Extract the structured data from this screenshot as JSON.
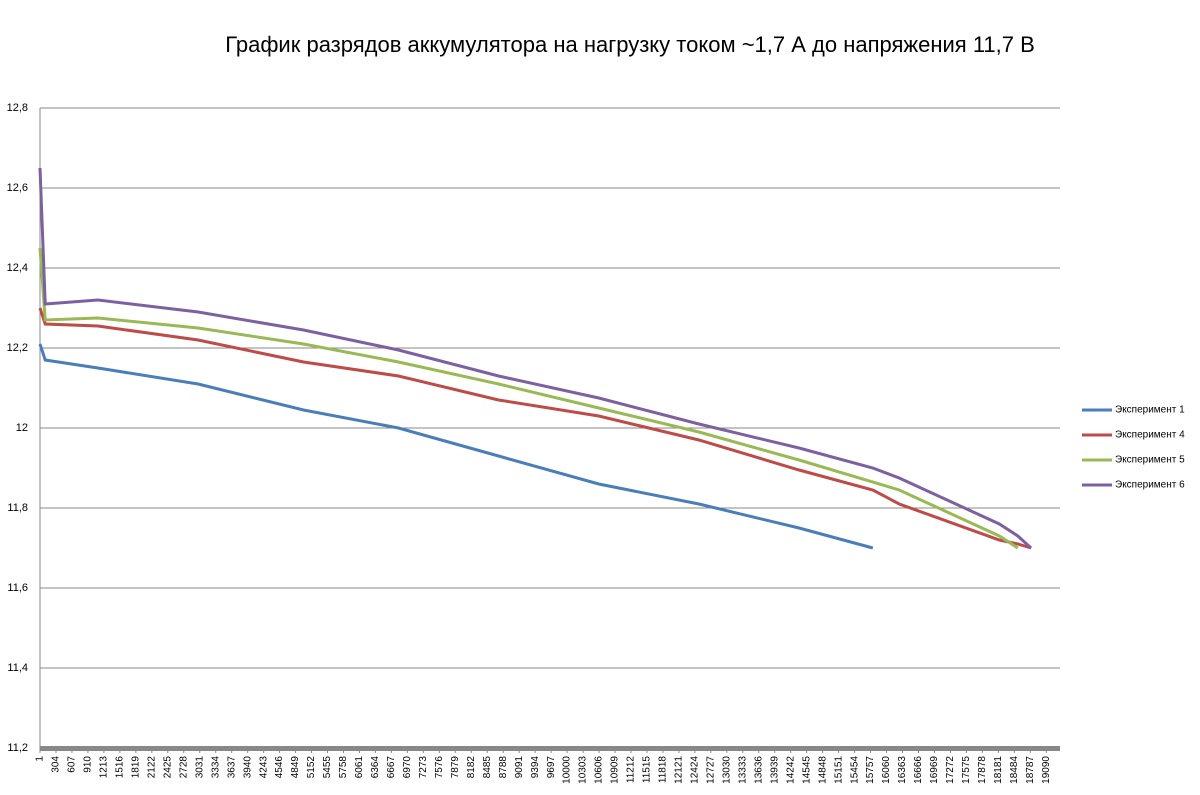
{
  "chart_data": {
    "type": "line",
    "title": "График разрядов аккумулятора на нагрузку током ~1,7 А до напряжения 11,7 В",
    "x": [
      1,
      100,
      1100,
      3000,
      5000,
      6800,
      8700,
      10600,
      12500,
      14400,
      15800,
      16300,
      18200,
      18550,
      18800
    ],
    "series": [
      {
        "name": "Эксперимент 1",
        "color": "#4a7ebb",
        "values": [
          12.21,
          12.17,
          12.15,
          12.11,
          12.045,
          12.0,
          11.93,
          11.86,
          11.81,
          11.75,
          11.7,
          null,
          null,
          null,
          null
        ]
      },
      {
        "name": "Эксперимент 4",
        "color": "#be4b48",
        "values": [
          12.3,
          12.26,
          12.255,
          12.22,
          12.165,
          12.13,
          12.07,
          12.03,
          11.97,
          11.895,
          11.845,
          11.81,
          11.72,
          11.71,
          11.7
        ]
      },
      {
        "name": "Эксперимент 5",
        "color": "#98b954",
        "values": [
          12.45,
          12.27,
          12.275,
          12.25,
          12.21,
          12.165,
          12.11,
          12.05,
          11.99,
          11.92,
          11.865,
          11.845,
          11.73,
          11.7,
          null
        ]
      },
      {
        "name": "Эксперимент 6",
        "color": "#7d60a0",
        "values": [
          12.65,
          12.31,
          12.32,
          12.29,
          12.245,
          12.195,
          12.13,
          12.075,
          12.01,
          11.95,
          11.9,
          11.875,
          11.76,
          11.73,
          11.7
        ]
      }
    ],
    "xlim": [
      1,
      19350
    ],
    "xticks": [
      1,
      304,
      607,
      910,
      1213,
      1516,
      1819,
      2122,
      2425,
      2728,
      3031,
      3334,
      3637,
      3940,
      4243,
      4546,
      4849,
      5152,
      5455,
      5758,
      6061,
      6364,
      6667,
      6970,
      7273,
      7576,
      7879,
      8182,
      8485,
      8788,
      9091,
      9394,
      9697,
      10000,
      10303,
      10606,
      10909,
      11212,
      11515,
      11818,
      12121,
      12424,
      12727,
      13030,
      13333,
      13636,
      13939,
      14242,
      14545,
      14848,
      15151,
      15454,
      15757,
      16060,
      16363,
      16666,
      16969,
      17272,
      17575,
      17878,
      18181,
      18484,
      18787,
      19090
    ],
    "ylim": [
      11.2,
      12.8
    ],
    "yticks": [
      {
        "value": 11.2,
        "label": "11,2"
      },
      {
        "value": 11.4,
        "label": "11,4"
      },
      {
        "value": 11.6,
        "label": "11,6"
      },
      {
        "value": 11.8,
        "label": "11,8"
      },
      12,
      {
        "value": 12.2,
        "label": "12,2"
      },
      {
        "value": 12.4,
        "label": "12,4"
      },
      {
        "value": 12.6,
        "label": "12,6"
      },
      {
        "value": 12.8,
        "label": "12,8"
      }
    ],
    "grid": true,
    "legend": "right"
  }
}
